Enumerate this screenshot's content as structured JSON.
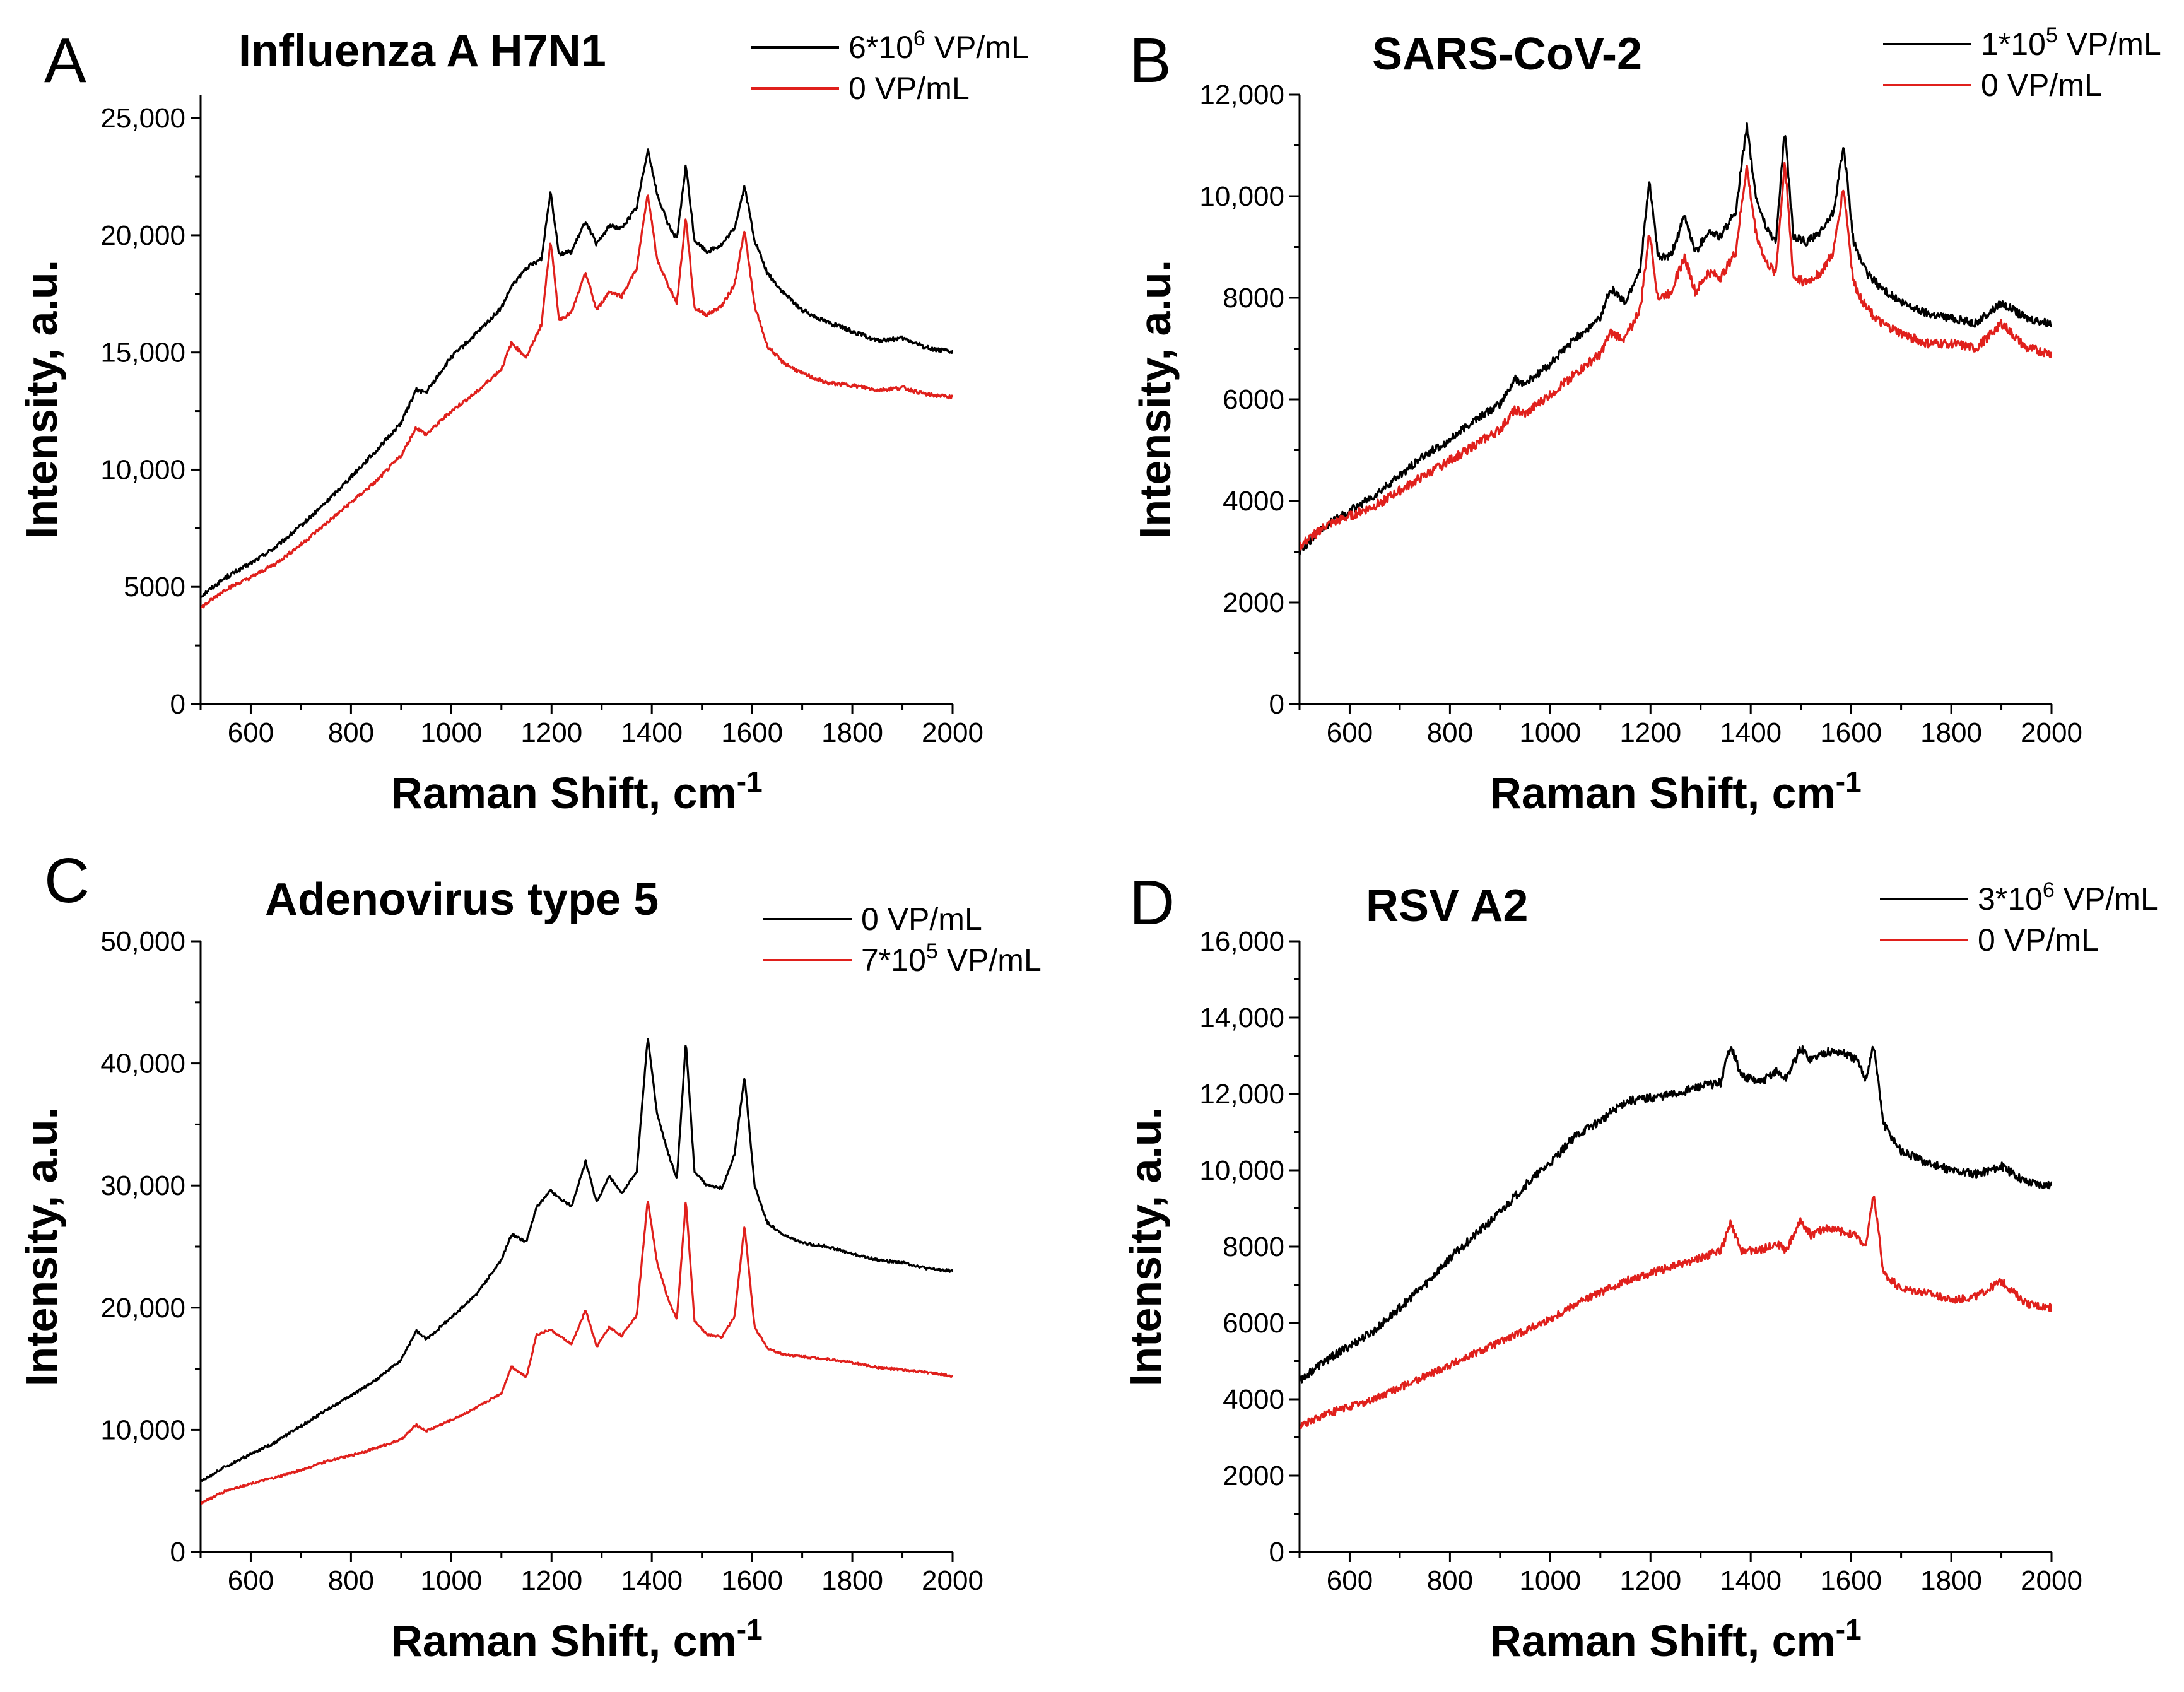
{
  "figure": {
    "description_free": true
  },
  "colors": {
    "black": "#000000",
    "red": "#e0201c"
  },
  "chart_data": [
    {
      "panel": "A",
      "type": "line",
      "title": "Influenza A H7N1",
      "xlabel": "Raman Shift, cm",
      "xlabel_sup": "-1",
      "ylabel": "Intensity, a.u.",
      "xlim": [
        500,
        2000
      ],
      "ylim": [
        0,
        26000
      ],
      "xticks": [
        600,
        800,
        1000,
        1200,
        1400,
        1600,
        1800,
        2000
      ],
      "yticks": [
        0,
        5000,
        10000,
        15000,
        20000,
        25000
      ],
      "ytick_labels": [
        "0",
        "5000",
        "10,000",
        "15,000",
        "20,000",
        "25,000"
      ],
      "yminor": 2500,
      "legend": [
        {
          "name": "6*10",
          "sup": "6",
          "rest": " VP/mL",
          "color": "#000000"
        },
        {
          "name": "0 VP/mL",
          "sup": "",
          "rest": "",
          "color": "#e0201c"
        }
      ],
      "series": [
        {
          "name": "6*10^6 VP/mL",
          "color": "#000000",
          "noise": 90,
          "x": [
            500,
            550,
            600,
            650,
            700,
            750,
            800,
            850,
            900,
            930,
            950,
            1000,
            1050,
            1100,
            1120,
            1150,
            1180,
            1198,
            1215,
            1240,
            1268,
            1290,
            1315,
            1340,
            1370,
            1392,
            1410,
            1430,
            1450,
            1468,
            1485,
            1510,
            1540,
            1565,
            1585,
            1605,
            1630,
            1660,
            1700,
            1750,
            1800,
            1850,
            1900,
            1950,
            2000
          ],
          "values": [
            4600,
            5400,
            6000,
            6700,
            7600,
            8600,
            9700,
            10800,
            12000,
            13400,
            13300,
            14800,
            15800,
            16900,
            17800,
            18600,
            19000,
            21900,
            19200,
            19300,
            20600,
            19600,
            20400,
            20300,
            21200,
            23700,
            21800,
            20600,
            19800,
            23000,
            19800,
            19300,
            19600,
            20300,
            22100,
            19800,
            18400,
            17600,
            16800,
            16300,
            15900,
            15500,
            15600,
            15200,
            15000
          ]
        },
        {
          "name": "0 VP/mL",
          "color": "#e0201c",
          "noise": 80,
          "x": [
            500,
            550,
            600,
            650,
            700,
            750,
            800,
            850,
            900,
            930,
            950,
            1000,
            1050,
            1100,
            1120,
            1150,
            1180,
            1198,
            1215,
            1240,
            1268,
            1290,
            1315,
            1340,
            1370,
            1392,
            1410,
            1430,
            1450,
            1468,
            1485,
            1510,
            1540,
            1565,
            1585,
            1605,
            1630,
            1660,
            1700,
            1750,
            1800,
            1850,
            1900,
            1950,
            2000
          ],
          "values": [
            4100,
            4900,
            5400,
            6000,
            6800,
            7700,
            8600,
            9500,
            10600,
            11800,
            11500,
            12500,
            13300,
            14300,
            15400,
            14800,
            16200,
            19800,
            16400,
            16700,
            18400,
            16800,
            17600,
            17400,
            18600,
            21800,
            19000,
            18000,
            17100,
            20800,
            16900,
            16600,
            17000,
            17900,
            20200,
            17000,
            15300,
            14600,
            14100,
            13700,
            13600,
            13400,
            13500,
            13200,
            13100
          ]
        }
      ]
    },
    {
      "panel": "B",
      "type": "line",
      "title": "SARS-CoV-2",
      "xlabel": "Raman Shift, cm",
      "xlabel_sup": "-1",
      "ylabel": "Intensity, a.u.",
      "xlim": [
        500,
        2000
      ],
      "ylim": [
        0,
        12000
      ],
      "xticks": [
        600,
        800,
        1000,
        1200,
        1400,
        1600,
        1800,
        2000
      ],
      "yticks": [
        0,
        2000,
        4000,
        6000,
        8000,
        10000,
        12000
      ],
      "ytick_labels": [
        "0",
        "2000",
        "4000",
        "6000",
        "8000",
        "10,000",
        "12,000"
      ],
      "yminor": 1000,
      "legend": [
        {
          "name": "1*10",
          "sup": "5",
          "rest": " VP/mL",
          "color": "#000000"
        },
        {
          "name": "0 VP/mL",
          "sup": "",
          "rest": "",
          "color": "#e0201c"
        }
      ],
      "series": [
        {
          "name": "1*10^5 VP/mL",
          "color": "#000000",
          "noise": 80,
          "x": [
            500,
            550,
            600,
            650,
            700,
            750,
            800,
            850,
            900,
            930,
            950,
            1000,
            1050,
            1100,
            1120,
            1150,
            1180,
            1198,
            1215,
            1240,
            1268,
            1290,
            1315,
            1340,
            1370,
            1392,
            1410,
            1430,
            1450,
            1468,
            1485,
            1510,
            1540,
            1565,
            1585,
            1605,
            1630,
            1660,
            1700,
            1750,
            1800,
            1850,
            1900,
            1950,
            2000
          ],
          "values": [
            3000,
            3500,
            3800,
            4100,
            4500,
            4900,
            5200,
            5600,
            5900,
            6400,
            6300,
            6700,
            7200,
            7600,
            8200,
            7900,
            8600,
            10300,
            8800,
            8800,
            9600,
            8900,
            9300,
            9200,
            9700,
            11400,
            10000,
            9400,
            9100,
            11300,
            9200,
            9100,
            9300,
            9700,
            11000,
            9100,
            8500,
            8200,
            7900,
            7700,
            7600,
            7500,
            7900,
            7600,
            7500
          ]
        },
        {
          "name": "0 VP/mL",
          "color": "#e0201c",
          "noise": 90,
          "x": [
            500,
            550,
            600,
            650,
            700,
            750,
            800,
            850,
            900,
            930,
            950,
            1000,
            1050,
            1100,
            1120,
            1150,
            1180,
            1198,
            1215,
            1240,
            1268,
            1290,
            1315,
            1340,
            1370,
            1392,
            1410,
            1430,
            1450,
            1468,
            1485,
            1510,
            1540,
            1565,
            1585,
            1605,
            1630,
            1660,
            1700,
            1750,
            1800,
            1850,
            1900,
            1950,
            2000
          ],
          "values": [
            3100,
            3500,
            3700,
            3900,
            4200,
            4500,
            4800,
            5100,
            5400,
            5800,
            5700,
            6100,
            6500,
            6900,
            7300,
            7200,
            7800,
            9300,
            8000,
            8100,
            8800,
            8100,
            8500,
            8400,
            8900,
            10600,
            9300,
            8700,
            8500,
            10700,
            8400,
            8300,
            8500,
            8900,
            10200,
            8300,
            7800,
            7500,
            7300,
            7100,
            7100,
            7000,
            7500,
            7000,
            6900
          ]
        }
      ]
    },
    {
      "panel": "C",
      "type": "line",
      "title": "Adenovirus type 5",
      "xlabel": "Raman Shift, cm",
      "xlabel_sup": "-1",
      "ylabel": "Intensity, a.u.",
      "xlim": [
        500,
        2000
      ],
      "ylim": [
        0,
        50000
      ],
      "xticks": [
        600,
        800,
        1000,
        1200,
        1400,
        1600,
        1800,
        2000
      ],
      "yticks": [
        0,
        10000,
        20000,
        30000,
        40000,
        50000
      ],
      "ytick_labels": [
        "0",
        "10,000",
        "20,000",
        "30,000",
        "40,000",
        "50,000"
      ],
      "yminor": 5000,
      "legend": [
        {
          "name": "0 VP/mL",
          "sup": "",
          "rest": "",
          "color": "#000000"
        },
        {
          "name": "7*10",
          "sup": "5",
          "rest": " VP/mL",
          "color": "#e0201c"
        }
      ],
      "series": [
        {
          "name": "0 VP/mL",
          "color": "#000000",
          "noise": 110,
          "x": [
            500,
            550,
            600,
            650,
            700,
            750,
            800,
            850,
            900,
            930,
            950,
            1000,
            1050,
            1100,
            1120,
            1150,
            1170,
            1198,
            1215,
            1240,
            1268,
            1290,
            1315,
            1340,
            1370,
            1392,
            1410,
            1430,
            1450,
            1468,
            1485,
            1510,
            1540,
            1565,
            1585,
            1605,
            1630,
            1660,
            1700,
            1750,
            1800,
            1850,
            1900,
            1950,
            2000
          ],
          "values": [
            5800,
            7000,
            8000,
            9000,
            10300,
            11600,
            12800,
            14100,
            15700,
            18100,
            17400,
            19200,
            21100,
            23900,
            26000,
            25400,
            28200,
            29600,
            29000,
            28300,
            32000,
            28600,
            30800,
            29300,
            31200,
            42200,
            36000,
            33000,
            30500,
            41800,
            31200,
            30000,
            29800,
            32500,
            39000,
            30000,
            27000,
            26000,
            25300,
            25000,
            24400,
            23900,
            23700,
            23200,
            23000
          ]
        },
        {
          "name": "7*10^5 VP/mL",
          "color": "#e0201c",
          "noise": 90,
          "x": [
            500,
            550,
            600,
            650,
            700,
            750,
            800,
            850,
            900,
            930,
            950,
            1000,
            1050,
            1100,
            1120,
            1150,
            1170,
            1198,
            1215,
            1240,
            1268,
            1290,
            1315,
            1340,
            1370,
            1392,
            1410,
            1430,
            1450,
            1468,
            1485,
            1510,
            1540,
            1565,
            1585,
            1605,
            1630,
            1660,
            1700,
            1750,
            1800,
            1850,
            1900,
            1950,
            2000
          ],
          "values": [
            4000,
            5000,
            5600,
            6100,
            6700,
            7400,
            7900,
            8500,
            9200,
            10400,
            9900,
            10800,
            11800,
            13000,
            15200,
            14300,
            17800,
            18200,
            17700,
            17000,
            19800,
            16800,
            18400,
            17700,
            19400,
            28900,
            23800,
            21000,
            19000,
            28800,
            18900,
            17800,
            17600,
            19300,
            26700,
            18400,
            16700,
            16200,
            16000,
            15800,
            15500,
            15100,
            14900,
            14700,
            14400
          ]
        }
      ]
    },
    {
      "panel": "D",
      "type": "line",
      "title": "RSV A2",
      "xlabel": "Raman Shift, cm",
      "xlabel_sup": "-1",
      "ylabel": "Intensity, a.u.",
      "xlim": [
        500,
        2000
      ],
      "ylim": [
        0,
        16000
      ],
      "xticks": [
        600,
        800,
        1000,
        1200,
        1400,
        1600,
        1800,
        2000
      ],
      "yticks": [
        0,
        2000,
        4000,
        6000,
        8000,
        10000,
        12000,
        14000,
        16000
      ],
      "ytick_labels": [
        "0",
        "2000",
        "4000",
        "6000",
        "8000",
        "10,000",
        "12,000",
        "14,000",
        "16,000"
      ],
      "yminor": 1000,
      "legend": [
        {
          "name": "3*10",
          "sup": "6",
          "rest": " VP/mL",
          "color": "#000000"
        },
        {
          "name": "0 VP/mL",
          "sup": "",
          "rest": "",
          "color": "#e0201c"
        }
      ],
      "series": [
        {
          "name": "3*10^6 VP/mL",
          "color": "#000000",
          "noise": 110,
          "x": [
            500,
            550,
            600,
            650,
            700,
            750,
            800,
            850,
            900,
            950,
            1000,
            1050,
            1100,
            1150,
            1200,
            1250,
            1300,
            1340,
            1360,
            1380,
            1420,
            1450,
            1470,
            1500,
            1520,
            1550,
            1580,
            1610,
            1630,
            1645,
            1665,
            1700,
            1750,
            1800,
            1850,
            1900,
            1950,
            2000
          ],
          "values": [
            4500,
            5000,
            5400,
            5800,
            6400,
            7000,
            7700,
            8300,
            8900,
            9600,
            10200,
            10900,
            11300,
            11800,
            11900,
            12000,
            12200,
            12300,
            13300,
            12500,
            12300,
            12600,
            12400,
            13200,
            12900,
            13100,
            13100,
            12900,
            12400,
            13300,
            11200,
            10500,
            10200,
            10000,
            9900,
            10100,
            9700,
            9600
          ]
        },
        {
          "name": "0 VP/mL",
          "color": "#e0201c",
          "noise": 100,
          "x": [
            500,
            550,
            600,
            650,
            700,
            750,
            800,
            850,
            900,
            950,
            1000,
            1050,
            1100,
            1150,
            1200,
            1250,
            1300,
            1340,
            1360,
            1380,
            1420,
            1450,
            1470,
            1500,
            1520,
            1550,
            1580,
            1610,
            1630,
            1645,
            1665,
            1700,
            1750,
            1800,
            1850,
            1900,
            1950,
            2000
          ],
          "values": [
            3300,
            3600,
            3800,
            4000,
            4300,
            4600,
            4900,
            5200,
            5500,
            5800,
            6100,
            6500,
            6800,
            7100,
            7300,
            7500,
            7700,
            7900,
            8600,
            7900,
            7900,
            8100,
            7900,
            8700,
            8300,
            8500,
            8400,
            8300,
            8000,
            9400,
            7300,
            6900,
            6800,
            6600,
            6700,
            7100,
            6500,
            6400
          ]
        }
      ]
    }
  ]
}
